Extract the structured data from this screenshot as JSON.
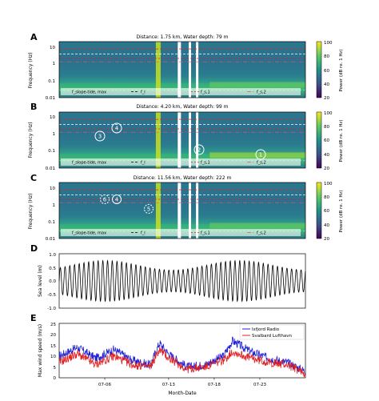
{
  "figure": {
    "x_axis_title": "Month-Date",
    "x_tick_labels": [
      "07-06",
      "07-13",
      "07-18",
      "07-23"
    ],
    "x_tick_dates": [
      "07-06",
      "07-13",
      "07-18",
      "07-23"
    ],
    "time_range": [
      "07-01",
      "07-28"
    ]
  },
  "panels": [
    {
      "letter": "A",
      "title": "Distance: 1.75 km, Water depth: 79 m",
      "ylabel": "Frequency (Hz)",
      "yticks": [
        "10",
        "1",
        "0.1",
        "0.01"
      ],
      "colorbar_label": "Power (dB re. 1 Hz)",
      "colorbar_ticks": [
        "100",
        "80",
        "60",
        "40",
        "20"
      ],
      "legend": [
        "f_slope-tide, max",
        "f_l",
        "f_s,1",
        "f_s,2"
      ],
      "markers": []
    },
    {
      "letter": "B",
      "title": "Distance: 4.20 km, Water depth: 99 m",
      "ylabel": "Frequency (Hz)",
      "yticks": [
        "10",
        "1",
        "0.1",
        "0.01"
      ],
      "colorbar_label": "Power (dB re. 1 Hz)",
      "colorbar_ticks": [
        "100",
        "80",
        "60",
        "40",
        "20"
      ],
      "legend": [
        "f_slope-tide, max",
        "f_l",
        "f_s,1",
        "f_s,2"
      ],
      "markers": [
        "3",
        "4",
        "2",
        "1"
      ]
    },
    {
      "letter": "C",
      "title": "Distance: 11.56 km, Water depth: 222 m",
      "ylabel": "Frequency (Hz)",
      "yticks": [
        "10",
        "1",
        "0.1",
        "0.01"
      ],
      "colorbar_label": "Power (dB re. 1 Hz)",
      "colorbar_ticks": [
        "100",
        "80",
        "60",
        "40",
        "20"
      ],
      "legend": [
        "f_slope-tide, max",
        "f_l",
        "f_s,1",
        "f_s,2"
      ],
      "markers": [
        "6",
        "4",
        "5"
      ]
    },
    {
      "letter": "D",
      "ylabel": "Sea level (m)",
      "yticks": [
        "1.0",
        "0.5",
        "0.0",
        "-0.5",
        "-1.0"
      ]
    },
    {
      "letter": "E",
      "ylabel": "Max wind speed (m/s)",
      "yticks": [
        "25",
        "20",
        "15",
        "10",
        "5",
        "0"
      ],
      "legend": [
        "Isfjord Radio",
        "Svalbard Lufthavn"
      ]
    }
  ],
  "colors": {
    "isfjord": "#1f1fd6",
    "svalbard": "#e02020",
    "line_red_dash": "#d62728",
    "line_red_dashdot": "#e06060",
    "viridis_low": "#440154",
    "viridis_mid": "#21918c",
    "viridis_high": "#fde725"
  },
  "chart_data": [
    {
      "type": "heatmap",
      "title": "Distance: 1.75 km, Water depth: 79 m",
      "ylabel": "Frequency (Hz)",
      "y_scale": "log",
      "ylim": [
        0.01,
        20
      ],
      "colorbar": {
        "label": "Power (dB re. 1 Hz)",
        "range": [
          20,
          100
        ]
      },
      "overlay_lines": [
        "f_slope-tide, max",
        "f_l",
        "f_s,1",
        "f_s,2"
      ]
    },
    {
      "type": "heatmap",
      "title": "Distance: 4.20 km, Water depth: 99 m",
      "ylabel": "Frequency (Hz)",
      "y_scale": "log",
      "ylim": [
        0.01,
        20
      ],
      "colorbar": {
        "label": "Power (dB re. 1 Hz)",
        "range": [
          20,
          100
        ]
      },
      "overlay_lines": [
        "f_slope-tide, max",
        "f_l",
        "f_s,1",
        "f_s,2"
      ]
    },
    {
      "type": "heatmap",
      "title": "Distance: 11.56 km, Water depth: 222 m",
      "ylabel": "Frequency (Hz)",
      "y_scale": "log",
      "ylim": [
        0.01,
        20
      ],
      "colorbar": {
        "label": "Power (dB re. 1 Hz)",
        "range": [
          20,
          100
        ]
      },
      "overlay_lines": [
        "f_slope-tide, max",
        "f_l",
        "f_s,1",
        "f_s,2"
      ]
    },
    {
      "type": "line",
      "ylabel": "Sea level (m)",
      "ylim": [
        -1.0,
        1.0
      ],
      "description_of_signal": "semi-diurnal tide, about 0.75 m amplitude at spring tide and about 0.4 m at neap tide",
      "period_hours": 12.42,
      "amplitude_m": {
        "spring": 0.75,
        "neap": 0.4
      }
    },
    {
      "type": "line",
      "xlabel": "Month-Date",
      "ylabel": "Max wind speed (m/s)",
      "ylim": [
        0,
        25
      ],
      "series": [
        {
          "name": "Isfjord Radio",
          "x": [
            "07-01",
            "07-03",
            "07-05",
            "07-07",
            "07-09",
            "07-11",
            "07-12",
            "07-13",
            "07-15",
            "07-17",
            "07-19",
            "07-20",
            "07-22",
            "07-24",
            "07-26",
            "07-28"
          ],
          "values": [
            10,
            14,
            9,
            13,
            8,
            6,
            16,
            11,
            5,
            6,
            10,
            17,
            12,
            9,
            7,
            3
          ]
        },
        {
          "name": "Svalbard Lufthavn",
          "x": [
            "07-01",
            "07-03",
            "07-05",
            "07-07",
            "07-09",
            "07-11",
            "07-12",
            "07-13",
            "07-15",
            "07-17",
            "07-19",
            "07-20",
            "07-22",
            "07-24",
            "07-26",
            "07-28"
          ],
          "values": [
            7,
            11,
            6,
            10,
            6,
            5,
            13,
            9,
            4,
            5,
            8,
            12,
            9,
            7,
            6,
            2
          ]
        }
      ]
    }
  ]
}
